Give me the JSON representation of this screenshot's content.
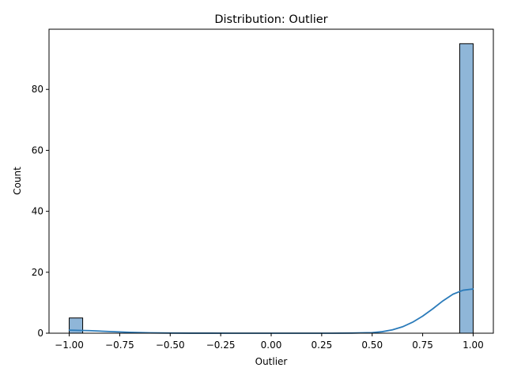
{
  "chart_data": {
    "type": "bar",
    "title": "Distribution: Outlier",
    "xlabel": "Outlier",
    "ylabel": "Count",
    "xlim": [
      -1.1,
      1.1
    ],
    "ylim": [
      0,
      99.75
    ],
    "grid": false,
    "x_ticks": [
      -1.0,
      -0.75,
      -0.5,
      -0.25,
      0.0,
      0.25,
      0.5,
      0.75,
      1.0
    ],
    "x_tick_labels": [
      "−1.00",
      "−0.75",
      "−0.50",
      "−0.25",
      "0.00",
      "0.25",
      "0.50",
      "0.75",
      "1.00"
    ],
    "y_ticks": [
      0,
      20,
      40,
      60,
      80
    ],
    "y_tick_labels": [
      "0",
      "20",
      "40",
      "60",
      "80"
    ],
    "bins": [
      {
        "x0": -1.0,
        "x1": -0.9333,
        "count": 5
      },
      {
        "x0": 0.9333,
        "x1": 1.0,
        "count": 95
      }
    ],
    "kde": {
      "x": [
        -1.0,
        -0.9,
        -0.8,
        -0.7,
        -0.6,
        -0.5,
        -0.4,
        -0.3,
        -0.2,
        -0.1,
        0.0,
        0.1,
        0.2,
        0.3,
        0.4,
        0.5,
        0.55,
        0.6,
        0.65,
        0.7,
        0.75,
        0.8,
        0.85,
        0.9,
        0.95,
        1.0
      ],
      "y": [
        1.0,
        0.85,
        0.55,
        0.3,
        0.12,
        0.05,
        0.02,
        0.01,
        0.0,
        0.0,
        0.0,
        0.0,
        0.0,
        0.0,
        0.05,
        0.2,
        0.5,
        1.1,
        2.1,
        3.6,
        5.6,
        8.0,
        10.6,
        12.8,
        14.1,
        14.5
      ]
    },
    "colors": {
      "bar_fill": "#8fb6d8",
      "bar_edge": "#000000",
      "kde_line": "#2b7bba"
    }
  }
}
